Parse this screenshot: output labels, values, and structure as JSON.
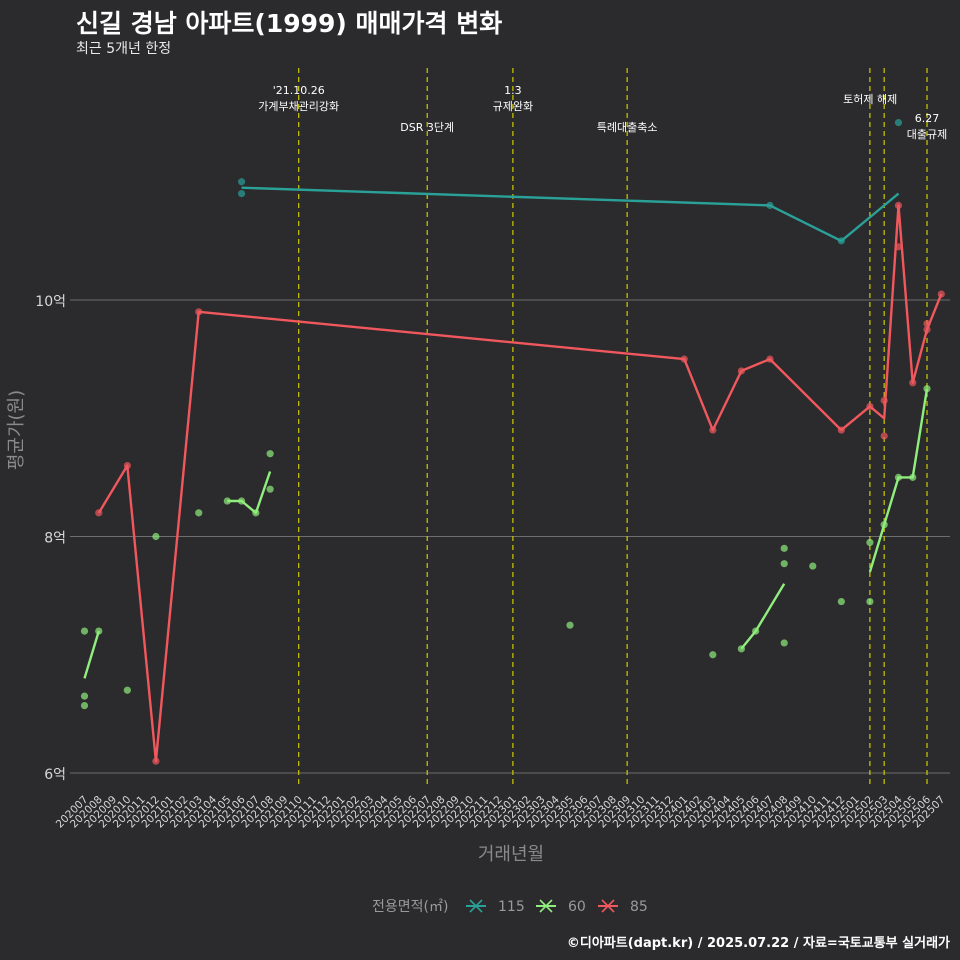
{
  "header": {
    "title": "신길 경남 아파트(1999) 매매가격 변화",
    "subtitle": "최근 5개년 한정"
  },
  "caption": "©디아파트(dapt.kr) / 2025.07.22 / 자료=국토교통부 실거래가",
  "colors": {
    "background": "#2b2a2c",
    "grid": "#6e6e6e",
    "vline": "#cccc00",
    "s115": "#2aa198",
    "s60": "#90ee7e",
    "s85": "#f0585e"
  },
  "chart_data": {
    "type": "line",
    "title": "신길 경남 아파트(1999) 매매가격 변화",
    "subtitle": "최근 5개년 한정",
    "xlabel": "거래년월",
    "ylabel": "평균가(원)",
    "ylim": [
      5.85,
      10.95
    ],
    "grid": true,
    "legend_position": "bottom",
    "legend_title": "전용면적(㎡)",
    "categories": [
      "202007",
      "202008",
      "202009",
      "202010",
      "202011",
      "202012",
      "202101",
      "202102",
      "202103",
      "202104",
      "202105",
      "202106",
      "202107",
      "202108",
      "202109",
      "202110",
      "202111",
      "202112",
      "202201",
      "202202",
      "202203",
      "202204",
      "202205",
      "202206",
      "202207",
      "202208",
      "202209",
      "202210",
      "202211",
      "202212",
      "202301",
      "202302",
      "202303",
      "202304",
      "202305",
      "202306",
      "202307",
      "202308",
      "202309",
      "202310",
      "202311",
      "202312",
      "202401",
      "202402",
      "202403",
      "202404",
      "202405",
      "202406",
      "202407",
      "202408",
      "202409",
      "202410",
      "202411",
      "202412",
      "202501",
      "202502",
      "202503",
      "202504",
      "202505",
      "202506",
      "202507"
    ],
    "y_ticks": [
      {
        "value": 6,
        "label": "6억"
      },
      {
        "value": 8,
        "label": "8억"
      },
      {
        "value": 10,
        "label": "10억"
      }
    ],
    "annotations": [
      {
        "month": "202110",
        "lines": [
          "'21.10.26",
          "가계부채관리강화"
        ],
        "row": 1
      },
      {
        "month": "202207",
        "lines": [
          "DSR 3단계"
        ],
        "row": 2
      },
      {
        "month": "202301",
        "lines": [
          "1.3",
          "규제완화"
        ],
        "row": 1
      },
      {
        "month": "202309",
        "lines": [
          "특례대출축소"
        ],
        "row": 2
      },
      {
        "month": "202502",
        "lines": [],
        "row": 0
      },
      {
        "month": "202503",
        "lines": [
          "토허제 해제"
        ],
        "row": 3
      },
      {
        "month": "202506",
        "lines": [
          "6.27",
          "대출규제"
        ],
        "row": 4
      }
    ],
    "series": [
      {
        "name": "115",
        "color": "#2aa198",
        "line": [
          [
            "202106",
            10.95
          ],
          [
            "202407",
            10.8
          ],
          [
            "202412",
            10.5
          ],
          [
            "202504",
            10.9
          ]
        ],
        "points": [
          [
            "202106",
            11.0
          ],
          [
            "202106",
            10.9
          ],
          [
            "202407",
            10.8
          ],
          [
            "202412",
            10.5
          ],
          [
            "202504",
            11.5
          ]
        ]
      },
      {
        "name": "60",
        "color": "#90ee7e",
        "line_segments": [
          [
            [
              "202007",
              6.8
            ],
            [
              "202008",
              7.2
            ]
          ],
          [
            [
              "202105",
              8.3
            ],
            [
              "202106",
              8.3
            ],
            [
              "202107",
              8.2
            ],
            [
              "202108",
              8.55
            ]
          ],
          [
            [
              "202405",
              7.05
            ],
            [
              "202406",
              7.2
            ],
            [
              "202408",
              7.6
            ]
          ],
          [
            [
              "202502",
              7.7
            ],
            [
              "202503",
              8.1
            ],
            [
              "202504",
              8.5
            ],
            [
              "202505",
              8.5
            ],
            [
              "202506",
              9.25
            ]
          ]
        ],
        "points": [
          [
            "202007",
            7.2
          ],
          [
            "202007",
            6.65
          ],
          [
            "202007",
            6.57
          ],
          [
            "202008",
            7.2
          ],
          [
            "202010",
            6.7
          ],
          [
            "202012",
            8.0
          ],
          [
            "202103",
            8.2
          ],
          [
            "202105",
            8.3
          ],
          [
            "202106",
            8.3
          ],
          [
            "202107",
            8.2
          ],
          [
            "202108",
            8.7
          ],
          [
            "202108",
            8.4
          ],
          [
            "202305",
            7.25
          ],
          [
            "202403",
            7.0
          ],
          [
            "202405",
            7.05
          ],
          [
            "202406",
            7.2
          ],
          [
            "202408",
            7.9
          ],
          [
            "202408",
            7.77
          ],
          [
            "202408",
            7.1
          ],
          [
            "202410",
            7.75
          ],
          [
            "202412",
            7.45
          ],
          [
            "202502",
            7.95
          ],
          [
            "202502",
            7.45
          ],
          [
            "202503",
            8.1
          ],
          [
            "202504",
            8.5
          ],
          [
            "202505",
            8.5
          ],
          [
            "202506",
            9.25
          ]
        ]
      },
      {
        "name": "85",
        "color": "#f0585e",
        "line": [
          [
            "202008",
            8.2
          ],
          [
            "202010",
            8.6
          ],
          [
            "202012",
            6.1
          ],
          [
            "202103",
            9.9
          ],
          [
            "202401",
            9.5
          ],
          [
            "202403",
            8.9
          ],
          [
            "202405",
            9.4
          ],
          [
            "202407",
            9.5
          ],
          [
            "202412",
            8.9
          ],
          [
            "202502",
            9.1
          ],
          [
            "202503",
            9.0
          ],
          [
            "202504",
            10.8
          ],
          [
            "202505",
            9.3
          ],
          [
            "202506",
            9.75
          ],
          [
            "202507",
            10.05
          ]
        ],
        "points": [
          [
            "202008",
            8.2
          ],
          [
            "202010",
            8.6
          ],
          [
            "202012",
            6.1
          ],
          [
            "202103",
            9.9
          ],
          [
            "202401",
            9.5
          ],
          [
            "202403",
            8.9
          ],
          [
            "202405",
            9.4
          ],
          [
            "202407",
            9.5
          ],
          [
            "202412",
            8.9
          ],
          [
            "202502",
            9.1
          ],
          [
            "202503",
            9.15
          ],
          [
            "202503",
            8.85
          ],
          [
            "202504",
            10.8
          ],
          [
            "202504",
            10.45
          ],
          [
            "202505",
            9.3
          ],
          [
            "202506",
            9.8
          ],
          [
            "202506",
            9.75
          ],
          [
            "202507",
            10.05
          ]
        ]
      }
    ]
  }
}
